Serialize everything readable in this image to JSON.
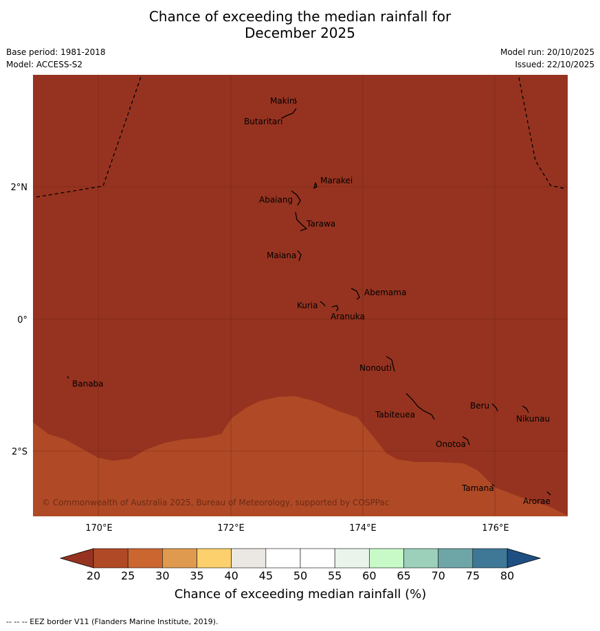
{
  "header": {
    "title_line1": "Chance of exceeding the median rainfall for",
    "title_line2": "December 2025",
    "base_period": "Base period: 1981-2018",
    "model": "Model: ACCESS-S2",
    "model_run": "Model run: 20/10/2025",
    "issued": "Issued: 22/10/2025"
  },
  "map": {
    "lat_labels": [
      "2°N",
      "0°",
      "2°S"
    ],
    "lon_labels": [
      "170°E",
      "172°E",
      "174°E",
      "176°E"
    ],
    "places": [
      "Makin",
      "Butaritari",
      "Marakei",
      "Abaiang",
      "Tarawa",
      "Maiana",
      "Abemama",
      "Kuria",
      "Aranuka",
      "Nonouti",
      "Banaba",
      "Beru",
      "Nikunau",
      "Tabiteuea",
      "Onotoa",
      "Tamana",
      "Arorae"
    ],
    "copyright": "© Commonwealth of Australia 2025, Bureau of Meteorology, supported by COSPPac",
    "colors": {
      "below_20": "#963320",
      "range_20_25": "#b04a26",
      "line": "#000000"
    }
  },
  "colorbar": {
    "ticks": [
      "20",
      "25",
      "30",
      "35",
      "40",
      "45",
      "50",
      "55",
      "60",
      "65",
      "70",
      "75",
      "80"
    ],
    "colors": [
      "#b04a26",
      "#cb6630",
      "#e09a4f",
      "#fdd06e",
      "#ebe8e3",
      "#ffffff",
      "#ffffff",
      "#eaf4ea",
      "#c8fac8",
      "#9cd0ba",
      "#6ea6a8",
      "#3e7896"
    ],
    "under_color": "#963320",
    "over_color": "#1f4f82",
    "label": "Chance of exceeding median rainfall (%)"
  },
  "footer": {
    "note": "--  --  -- EEZ border V11 (Flanders Marine Institute, 2019)."
  }
}
